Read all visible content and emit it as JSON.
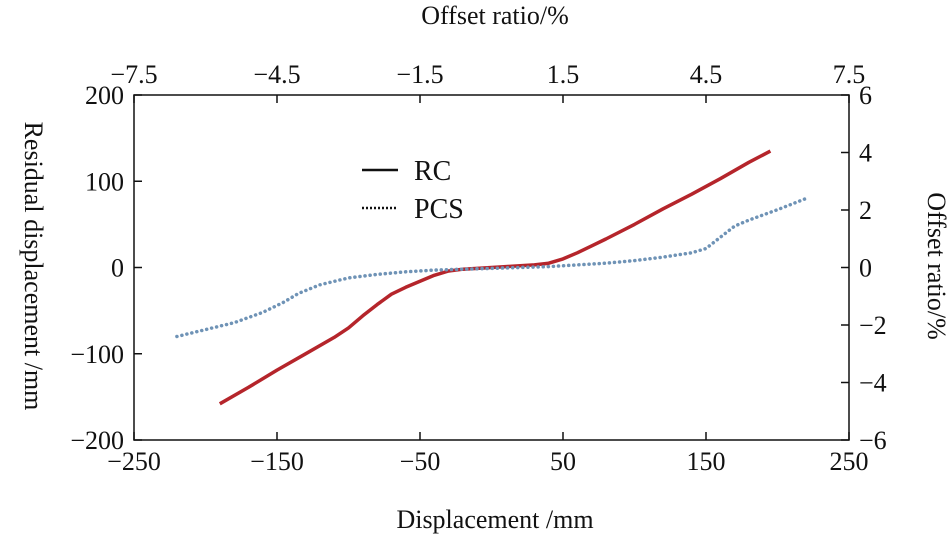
{
  "chart_data": {
    "type": "line",
    "xlabel": "Displacement /mm",
    "ylabel": "Residual displacement /mm",
    "x2label": "Offset ratio/%",
    "y2label": "Offset ratio/%",
    "xlim": [
      -250,
      250
    ],
    "ylim": [
      -200,
      200
    ],
    "x2lim": [
      -7.5,
      7.5
    ],
    "y2lim": [
      -6,
      6
    ],
    "xticks": [
      -250,
      -150,
      -50,
      50,
      150,
      250
    ],
    "xtick_labels": [
      "−250",
      "−150",
      "−50",
      "50",
      "150",
      "250"
    ],
    "yticks": [
      -200,
      -100,
      0,
      100,
      200
    ],
    "ytick_labels": [
      "−200",
      "−100",
      "0",
      "100",
      "200"
    ],
    "x2ticks": [
      -7.5,
      -4.5,
      -1.5,
      1.5,
      4.5,
      7.5
    ],
    "x2tick_labels": [
      "−7.5",
      "−4.5",
      "−1.5",
      "1.5",
      "4.5",
      "7.5"
    ],
    "y2ticks": [
      -6,
      -4,
      -2,
      0,
      2,
      4,
      6
    ],
    "y2tick_labels": [
      "−6",
      "−4",
      "−2",
      "0",
      "2",
      "4",
      "6"
    ],
    "legend_position": "upper-center-left",
    "series": [
      {
        "name": "RC",
        "color": "#b5252b",
        "style": "solid",
        "x": [
          -190,
          -170,
          -150,
          -130,
          -110,
          -100,
          -90,
          -80,
          -70,
          -60,
          -50,
          -40,
          -30,
          -20,
          -10,
          0,
          10,
          20,
          30,
          40,
          50,
          60,
          70,
          80,
          100,
          120,
          140,
          160,
          180,
          195
        ],
        "y": [
          -158,
          -139,
          -119,
          -100,
          -81,
          -70,
          -56,
          -43,
          -31,
          -23,
          -16,
          -9,
          -4,
          -2,
          -1,
          0,
          1,
          2,
          3,
          5,
          10,
          17,
          25,
          33,
          50,
          68,
          85,
          103,
          122,
          135
        ]
      },
      {
        "name": "PCS",
        "color": "#6f93b6",
        "style": "dotted",
        "x": [
          -220,
          -200,
          -180,
          -160,
          -145,
          -135,
          -120,
          -100,
          -80,
          -60,
          -40,
          -20,
          0,
          20,
          40,
          60,
          80,
          100,
          120,
          140,
          150,
          160,
          170,
          180,
          200,
          220
        ],
        "y": [
          -80,
          -72,
          -64,
          -52,
          -40,
          -30,
          -20,
          -12,
          -8,
          -5,
          -3,
          -2,
          -1,
          0,
          1,
          3,
          5,
          8,
          12,
          17,
          22,
          35,
          48,
          55,
          67,
          80
        ]
      }
    ]
  }
}
